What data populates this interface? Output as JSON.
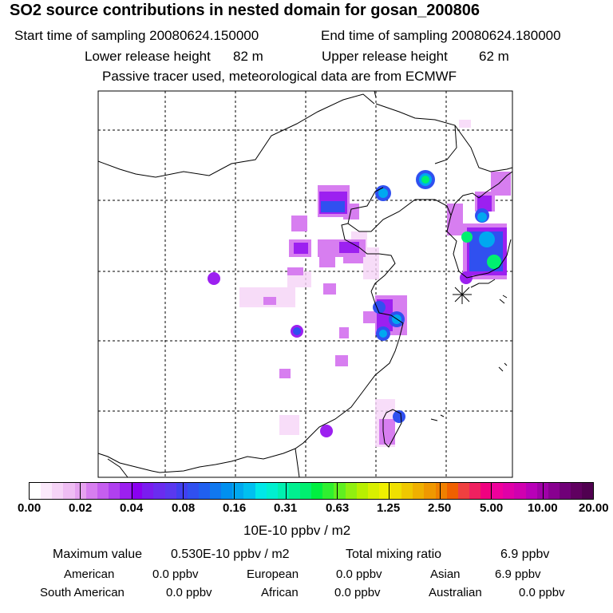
{
  "header": {
    "title": "SO2 source contributions in nested domain for gosan_200806",
    "start_label": "Start time of sampling 20080624.150000",
    "end_label": "End time of sampling 20080624.180000",
    "lower_label": "Lower release height",
    "lower_value": "82 m",
    "upper_label": "Upper release height",
    "upper_value": "62 m",
    "note": "Passive tracer used, meteorological data are from ECMWF"
  },
  "colorbar": {
    "unit": "10E-10 ppbv / m2",
    "tick_labels": [
      "0.00",
      "0.02",
      "0.04",
      "0.08",
      "0.16",
      "0.31",
      "0.63",
      "1.25",
      "2.50",
      "5.00",
      "10.00",
      "20.00"
    ],
    "colors": [
      "#ffffff",
      "#fbe9fb",
      "#f6d4f7",
      "#efbdf3",
      "#e6a2f0",
      "#d77ef0",
      "#c65ef0",
      "#b040f0",
      "#9c20f0",
      "#8a00f0",
      "#7a1cf0",
      "#6a2cf0",
      "#5a38f0",
      "#4040f0",
      "#3050f0",
      "#2060f0",
      "#1078f0",
      "#0090f0",
      "#00a8f0",
      "#00c0f0",
      "#00e8e8",
      "#00f0d0",
      "#00f0b0",
      "#00f090",
      "#00f070",
      "#00f040",
      "#30f030",
      "#60f020",
      "#90f010",
      "#b8f000",
      "#d8f000",
      "#f0f000",
      "#f0e000",
      "#f0c800",
      "#f0b000",
      "#f09800",
      "#f08000",
      "#f06000",
      "#f04040",
      "#f02060",
      "#f00080",
      "#f0009c",
      "#e000a8",
      "#d000b0",
      "#b800b8",
      "#a000a8",
      "#880090",
      "#700078",
      "#600060",
      "#500050"
    ]
  },
  "footer": {
    "max_label": "Maximum value",
    "max_value": "0.530E-10 ppbv / m2",
    "total_label": "Total mixing ratio",
    "total_value": "6.9 ppbv",
    "regions": [
      {
        "name": "American",
        "value": "0.0 ppbv"
      },
      {
        "name": "European",
        "value": "0.0 ppbv"
      },
      {
        "name": "Asian",
        "value": "6.9 ppbv"
      },
      {
        "name": "South American",
        "value": "0.0 ppbv"
      },
      {
        "name": "African",
        "value": "0.0 ppbv"
      },
      {
        "name": "Australian",
        "value": "0.0 ppbv"
      }
    ]
  }
}
